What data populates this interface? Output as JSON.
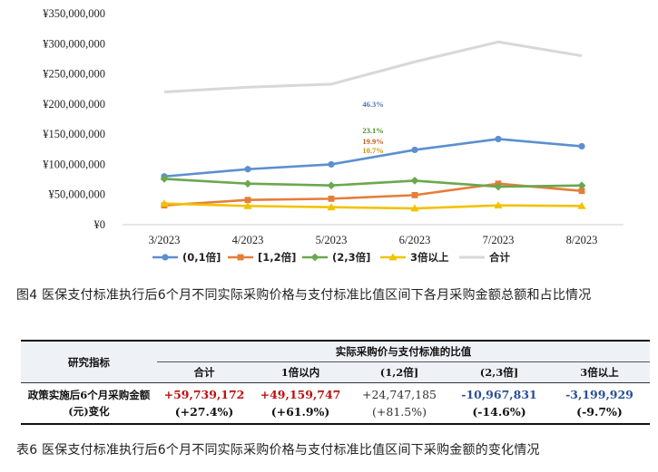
{
  "chart_data": {
    "type": "line",
    "categories": [
      "3/2023",
      "4/2023",
      "5/2023",
      "6/2023",
      "7/2023",
      "8/2023"
    ],
    "y_ticks": [
      "¥0",
      "¥50,000,000",
      "¥100,000,000",
      "¥150,000,000",
      "¥200,000,000",
      "¥250,000,000",
      "¥300,000,000",
      "¥350,000,000"
    ],
    "ylim": [
      0,
      350000000
    ],
    "series": [
      {
        "name": "(0,1倍]",
        "color": "#5b8fcf",
        "marker": "circle",
        "values": [
          80000000,
          92000000,
          100000000,
          124000000,
          142000000,
          130000000
        ]
      },
      {
        "name": "[1,2倍]",
        "color": "#e57d3a",
        "marker": "square",
        "values": [
          32000000,
          41000000,
          43000000,
          49000000,
          68000000,
          56000000
        ]
      },
      {
        "name": "(2,3倍]",
        "color": "#6aa84f",
        "marker": "diamond",
        "values": [
          76000000,
          68000000,
          65000000,
          73000000,
          63000000,
          65000000
        ]
      },
      {
        "name": "3倍以上",
        "color": "#f2c200",
        "marker": "triangle",
        "values": [
          35000000,
          31000000,
          29000000,
          27000000,
          32000000,
          31000000
        ]
      },
      {
        "name": "合计",
        "color": "#d8d8d8",
        "marker": "none",
        "values": [
          220000000,
          228000000,
          233000000,
          270000000,
          303000000,
          280000000
        ]
      }
    ],
    "annotations": [
      {
        "text": "46.3%",
        "color": "#4a72b8"
      },
      {
        "text": "23.1%",
        "color": "#4f8a2e"
      },
      {
        "text": "19.9%",
        "color": "#c85a1e"
      },
      {
        "text": "10.7%",
        "color": "#c99400"
      }
    ],
    "legend_position": "bottom",
    "grid": false
  },
  "figure_caption": "图4 医保支付标准执行后6个月不同实际采购价格与支付标准比值区间下各月采购金额总额和占比情况",
  "table": {
    "row_header": "研究指标",
    "group_header": "实际采购价与支付标准的比值",
    "columns": [
      "合计",
      "1倍以内",
      "(1,2倍]",
      "(2,3倍]",
      "3倍以上"
    ],
    "row_label": "政策实施后6个月采购金额(元)变化",
    "values": [
      "+59,739,172",
      "+49,159,747",
      "+24,747,185",
      "-10,967,831",
      "-3,199,929"
    ],
    "changes": [
      "(+27.4%)",
      "(+61.9%)",
      "(+81.5%)",
      "(-14.6%)",
      "(-9.7%)"
    ]
  },
  "table_caption": "表6 医保支付标准执行后6个月不同实际采购价格与支付标准比值区间下采购金额的变化情况"
}
